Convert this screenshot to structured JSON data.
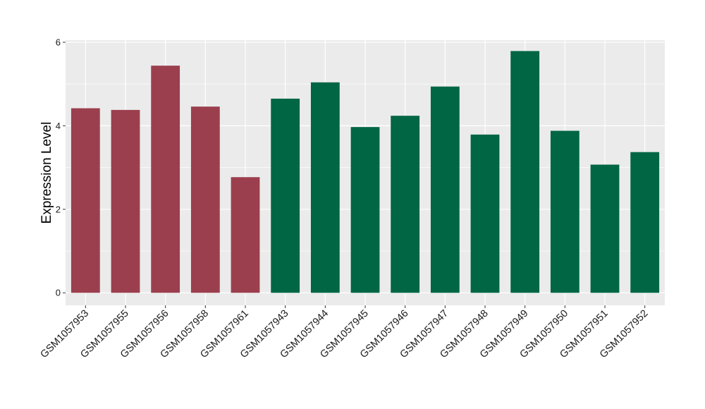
{
  "chart_data": {
    "type": "bar",
    "ylabel": "Expression Level",
    "xlabel": "",
    "ylim": [
      -0.3,
      6.05
    ],
    "yticks": [
      0,
      2,
      4,
      6
    ],
    "grid": true,
    "panel_background": "#ebebeb",
    "gridline_color": "#ffffff",
    "categories": [
      "GSM1057953",
      "GSM1057955",
      "GSM1057956",
      "GSM1057958",
      "GSM1057961",
      "GSM1057943",
      "GSM1057944",
      "GSM1057945",
      "GSM1057946",
      "GSM1057947",
      "GSM1057948",
      "GSM1057949",
      "GSM1057950",
      "GSM1057951",
      "GSM1057952"
    ],
    "values": [
      4.42,
      4.38,
      5.44,
      4.46,
      2.77,
      4.65,
      5.04,
      3.97,
      4.24,
      4.94,
      3.79,
      5.79,
      3.88,
      3.07,
      3.37
    ],
    "groups": [
      0,
      0,
      0,
      0,
      0,
      1,
      1,
      1,
      1,
      1,
      1,
      1,
      1,
      1,
      1
    ],
    "group_colors": [
      "#9b3f4e",
      "#006644"
    ]
  }
}
